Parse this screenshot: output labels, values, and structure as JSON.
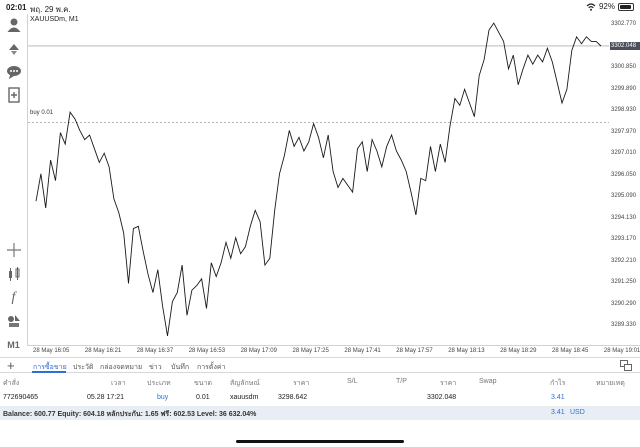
{
  "status": {
    "time": "02:01",
    "date": "พฤ. 29 พ.ค.",
    "battery_level": 0.92,
    "battery_text": "92%"
  },
  "chart": {
    "title": "XAUUSDm, M1",
    "buy_line_label": "buy 0.01",
    "current_price_tag": "3302.048",
    "price_ticks": [
      "3302.770",
      "3301.810",
      "3300.850",
      "3299.890",
      "3298.930",
      "3297.970",
      "3297.010",
      "3296.050",
      "3295.090",
      "3294.130",
      "3293.170",
      "3292.210",
      "3291.250",
      "3290.290",
      "3289.330"
    ],
    "time_ticks": [
      "28 May 16:05",
      "28 May 16:21",
      "28 May 16:37",
      "28 May 16:53",
      "28 May 17:09",
      "28 May 17:25",
      "28 May 17:41",
      "28 May 17:57",
      "28 May 18:13",
      "28 May 18:29",
      "28 May 18:45",
      "28 May 19:01"
    ]
  },
  "chart_data": {
    "type": "line",
    "title": "XAUUSDm, M1",
    "xlabel": "",
    "ylabel": "",
    "ylim": [
      3288.9,
      3303.4
    ],
    "grid": false,
    "series": [
      {
        "name": "",
        "values": [
          3295.2,
          3296.4,
          3294.9,
          3297.0,
          3296.1,
          3298.2,
          3297.7,
          3299.1,
          3298.8,
          3298.3,
          3297.9,
          3298.1,
          3297.5,
          3296.9,
          3297.3,
          3296.7,
          3295.3,
          3294.7,
          3293.8,
          3291.6,
          3294.0,
          3294.1,
          3293.0,
          3292.0,
          3291.2,
          3292.2,
          3290.6,
          3289.3,
          3290.8,
          3291.2,
          3292.4,
          3290.2,
          3291.3,
          3291.5,
          3291.8,
          3290.5,
          3292.5,
          3291.9,
          3292.5,
          3293.4,
          3292.7,
          3293.6,
          3292.9,
          3293.2,
          3294.1,
          3294.8,
          3294.3,
          3292.4,
          3292.7,
          3294.8,
          3296.4,
          3297.2,
          3298.3,
          3297.6,
          3298.0,
          3297.4,
          3297.8,
          3298.6,
          3298.0,
          3297.1,
          3298.1,
          3296.5,
          3295.8,
          3296.2,
          3295.9,
          3295.6,
          3297.5,
          3297.8,
          3296.5,
          3297.9,
          3297.4,
          3296.7,
          3297.6,
          3298.1,
          3297.4,
          3297.0,
          3296.5,
          3295.6,
          3294.6,
          3296.2,
          3296.1,
          3297.6,
          3296.5,
          3297.7,
          3296.9,
          3298.5,
          3299.7,
          3299.4,
          3300.1,
          3299.5,
          3298.9,
          3300.7,
          3301.4,
          3302.7,
          3303.0,
          3302.6,
          3302.2,
          3301.0,
          3301.6,
          3300.3,
          3301.0,
          3301.6,
          3301.2,
          3301.6,
          3301.3,
          3301.9,
          3301.3,
          3300.4,
          3299.5,
          3300.1,
          3301.8,
          3302.4,
          3302.1,
          3302.4,
          3302.2,
          3302.2,
          3302.0
        ]
      }
    ]
  },
  "toolbar": {
    "timeframe_label": "M1",
    "icons": [
      "account-icon",
      "trade-icon",
      "chat-icon",
      "new-order-icon",
      "crosshair-icon",
      "candles-icon",
      "indicator-icon",
      "objects-icon"
    ]
  },
  "tabs": {
    "add_label": "+",
    "items": [
      "การซื้อขาย",
      "ประวัติ",
      "กล่องจดหมาย",
      "ข่าว",
      "บันทึก",
      "การตั้งค่า"
    ],
    "active_index": 0
  },
  "table": {
    "headers": [
      "คำสั่ง",
      "เวลา",
      "ประเภท",
      "ขนาด",
      "สัญลักษณ์",
      "ราคา",
      "S/L",
      "T/P",
      "ราคา",
      "Swap",
      "กำไร",
      "หมายเหตุ"
    ],
    "row": {
      "order": "772690465",
      "time": "05.28 17:21",
      "type": "buy",
      "size": "0.01",
      "symbol": "xauusdm",
      "open_price": "3298.642",
      "sl": "",
      "tp": "",
      "current_price": "3302.048",
      "swap": "",
      "profit": "3.41",
      "comment": ""
    }
  },
  "summary": {
    "text": "Balance: 600.77 Equity: 604.18 หลักประกัน: 1.65 ฟรี: 602.53 Level: 36 632.04%",
    "profit": "3.41",
    "currency": "USD"
  }
}
